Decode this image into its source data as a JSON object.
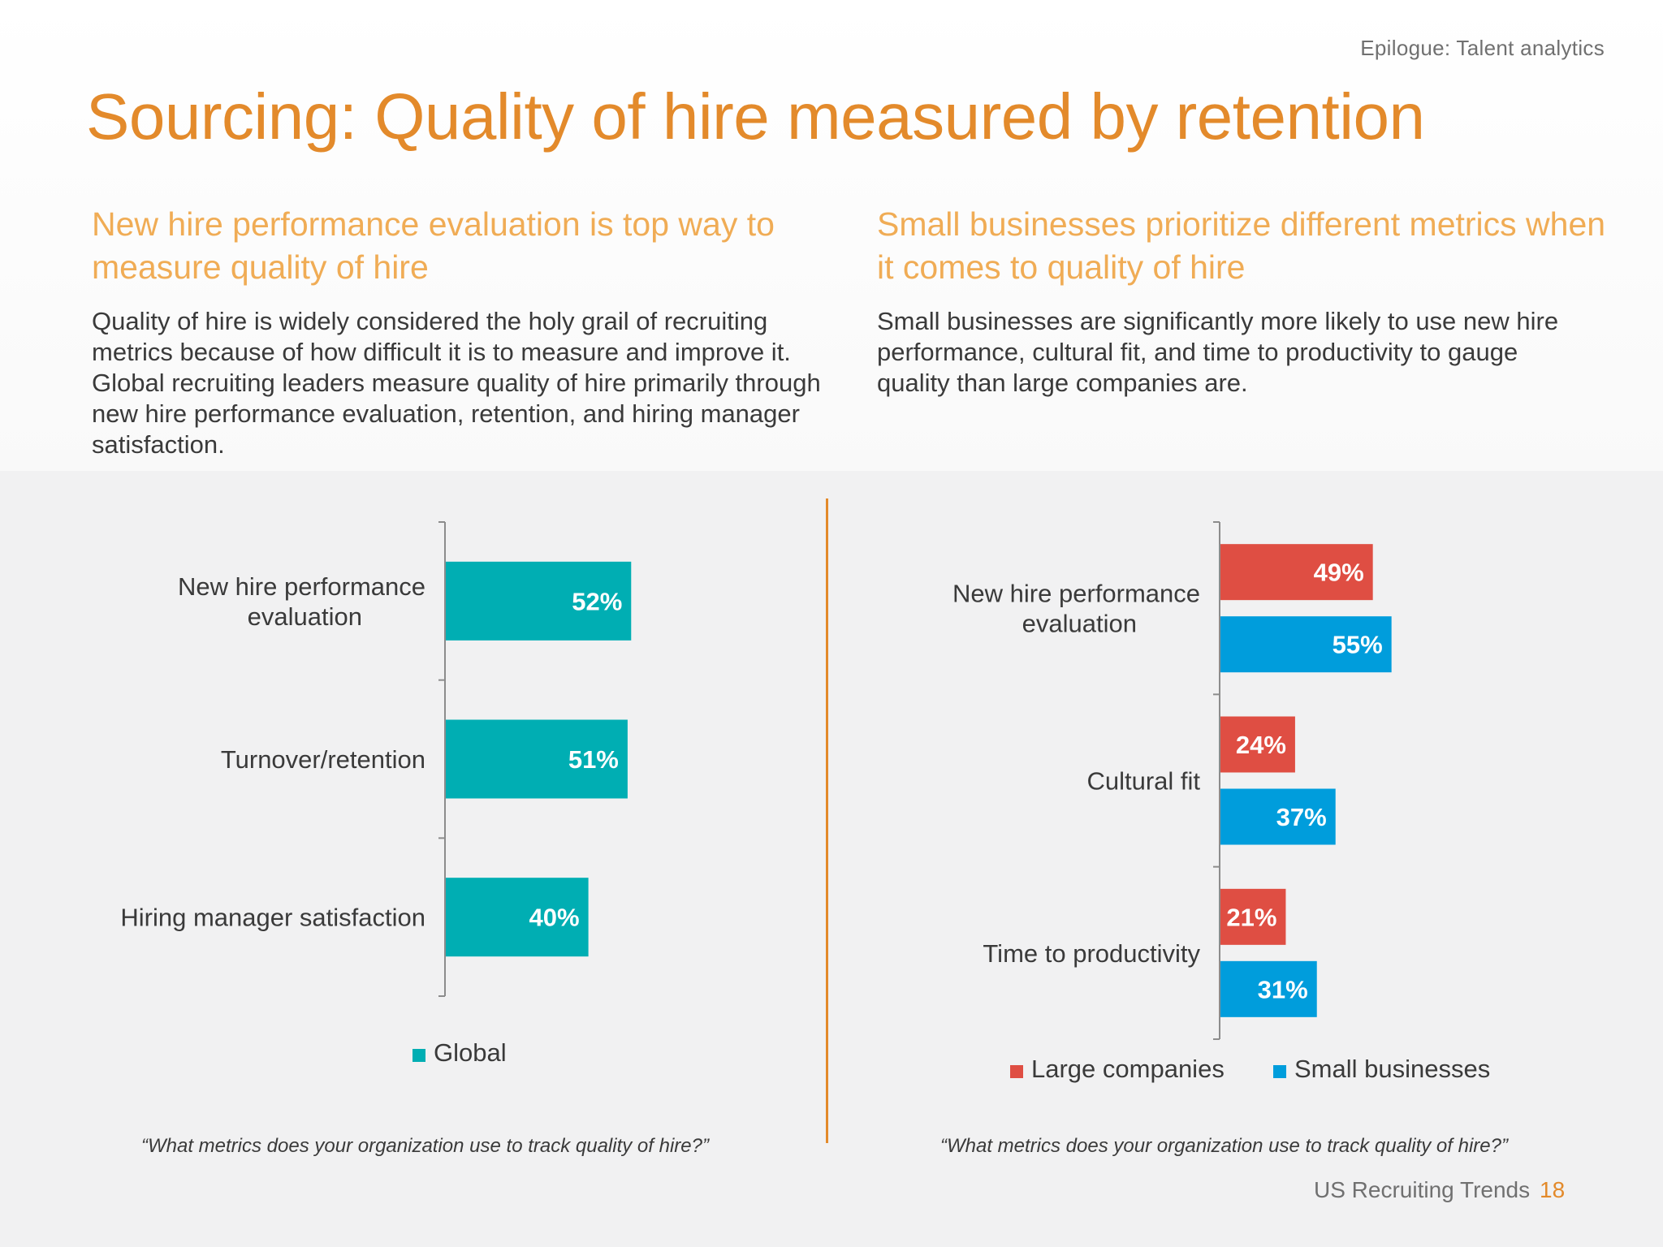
{
  "header": {
    "eyebrow": "Epilogue: Talent analytics",
    "title": "Sourcing: Quality of hire measured by retention"
  },
  "left": {
    "subhead": "New hire performance evaluation is top way to measure quality of hire",
    "body": "Quality of hire is widely considered the holy grail of recruiting metrics because of how difficult it is to measure and improve it. Global recruiting leaders measure quality of hire primarily through new hire performance evaluation, retention, and hiring manager satisfaction.",
    "question": "“What metrics does your organization use to track quality of hire?”"
  },
  "right": {
    "subhead": "Small businesses prioritize different metrics when it comes to quality of hire",
    "body": "Small businesses are significantly more likely to use new hire performance, cultural fit, and time to productivity to gauge quality than large companies are.",
    "question": "“What metrics does your organization use to track quality of hire?”"
  },
  "footer": {
    "text": "US Recruiting Trends",
    "page": "18"
  },
  "colors": {
    "accent": "#e38a2b",
    "global": "#00aeb3",
    "large": "#df4e43",
    "small": "#009ddc"
  },
  "chart_data": [
    {
      "type": "bar",
      "orientation": "horizontal",
      "categories": [
        [
          "New hire performance",
          "evaluation"
        ],
        [
          "Turnover/retention"
        ],
        [
          "Hiring manager satisfaction"
        ]
      ],
      "series": [
        {
          "name": "Global",
          "color": "#00aeb3",
          "values": [
            52,
            51,
            40
          ],
          "labels": [
            "52%",
            "51%",
            "40%"
          ]
        }
      ],
      "xlim": [
        0,
        100
      ],
      "legend": "bottom"
    },
    {
      "type": "bar",
      "orientation": "horizontal",
      "categories": [
        [
          "New hire performance",
          "evaluation"
        ],
        [
          "Cultural fit"
        ],
        [
          "Time to productivity"
        ]
      ],
      "series": [
        {
          "name": "Large companies",
          "color": "#df4e43",
          "values": [
            49,
            24,
            21
          ],
          "labels": [
            "49%",
            "24%",
            "21%"
          ]
        },
        {
          "name": "Small businesses",
          "color": "#009ddc",
          "values": [
            55,
            37,
            31
          ],
          "labels": [
            "55%",
            "37%",
            "31%"
          ]
        }
      ],
      "xlim": [
        0,
        100
      ],
      "legend": "bottom"
    }
  ]
}
